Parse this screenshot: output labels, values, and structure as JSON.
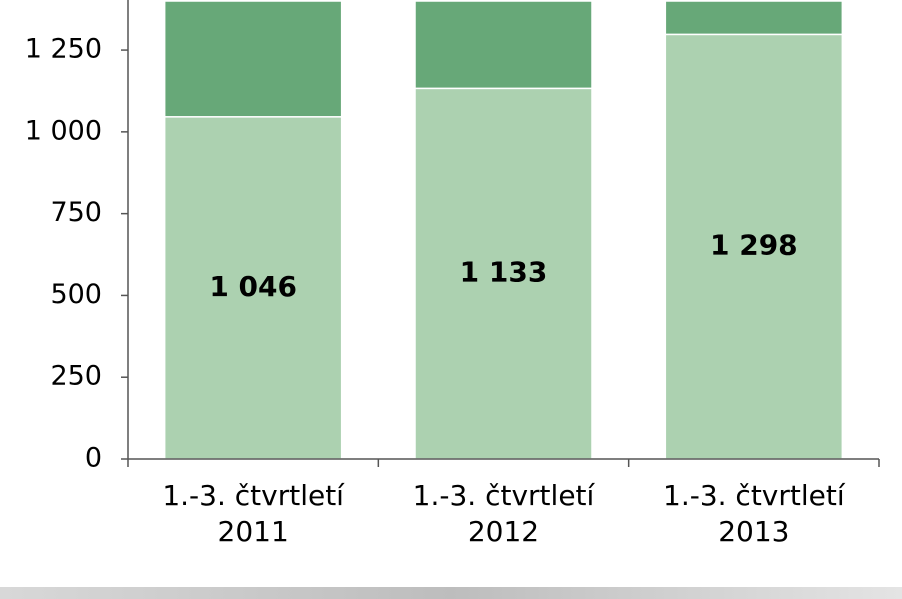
{
  "chart_data": {
    "type": "stacked_bar",
    "categories": [
      "1.-3. čtvrtletí 2011",
      "1.-3. čtvrtletí 2012",
      "1.-3. čtvrtletí 2013"
    ],
    "series": [
      {
        "color": "#acd1b0",
        "values": [
          1046,
          1133,
          1298
        ],
        "value_labels": [
          "1 046",
          "1 133",
          "1 298"
        ]
      },
      {
        "color": "#67a878",
        "values": [
          354,
          267,
          102
        ]
      }
    ],
    "ylim": [
      0,
      1400
    ],
    "yticks": [
      0,
      250,
      500,
      750,
      {
        "value": 1000,
        "label": "1 000"
      },
      {
        "value": 1250,
        "label": "1 250"
      }
    ]
  }
}
